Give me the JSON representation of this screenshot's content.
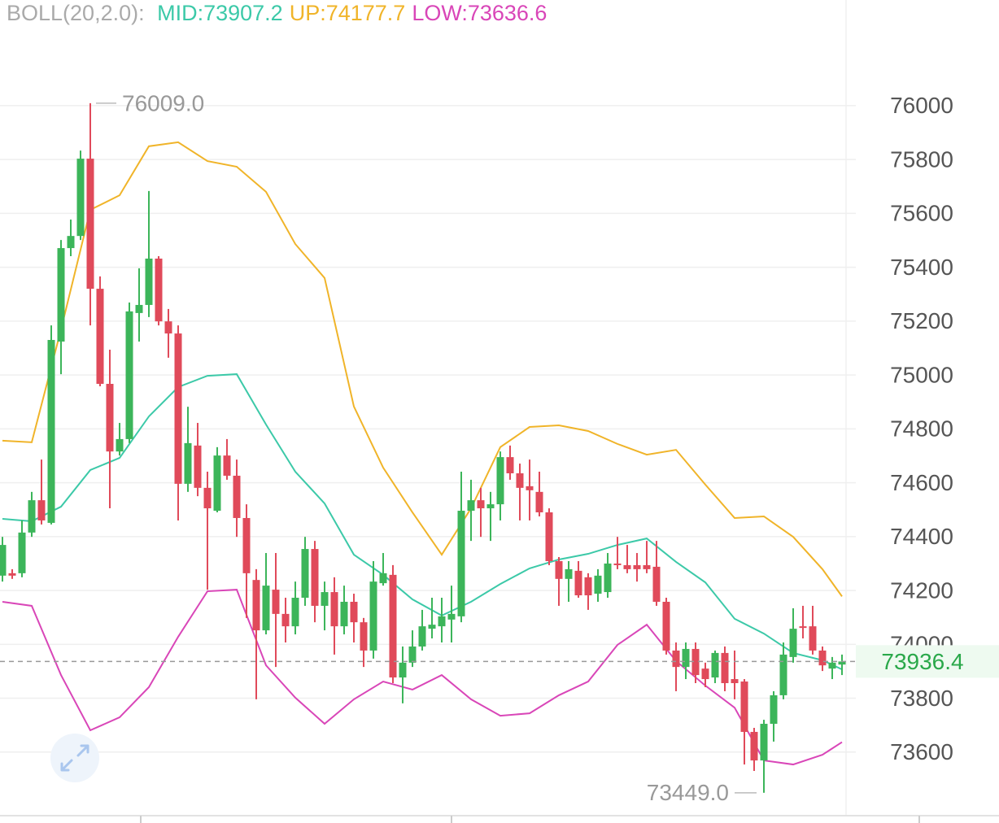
{
  "chart_data": {
    "type": "candlestick",
    "legend_prefix": "BOLL(20,2.0):",
    "up_color": "#3cb55a",
    "down_color": "#e04a5a",
    "ylim": [
      73373,
      76392
    ],
    "yticks": [
      73600,
      73800,
      74000,
      74200,
      74400,
      74600,
      74800,
      75000,
      75200,
      75400,
      75600,
      75800,
      76000
    ],
    "grid": true,
    "open": [
      74255,
      74264,
      74264,
      74415,
      74535,
      74451,
      75124,
      75471,
      75516,
      75803,
      75320,
      74967,
      74716,
      74762,
      75230,
      75260,
      75432,
      75199,
      75154,
      74596,
      74738,
      74581,
      74496,
      74701,
      74626,
      74469,
      74239,
      74052,
      74203,
      74113,
      74067,
      74173,
      74354,
      74143,
      74194,
      74067,
      74158,
      74082,
      73977,
      74227,
      74258,
      73877,
      73932,
      73992,
      74058,
      74067,
      74092,
      74104,
      74496,
      74535,
      74505,
      74520,
      74695,
      74635,
      74587,
      74566,
      74490,
      74309,
      74243,
      74273,
      74249,
      74188,
      74194,
      74300,
      74294,
      74294,
      74294,
      74288,
      74158,
      73977,
      73916,
      73983,
      73910,
      73877,
      73968,
      73871,
      73862,
      73675,
      73569,
      73705,
      73811,
      73953,
      74067,
      74067,
      73977,
      73910,
      73925
    ],
    "high": [
      74399,
      74279,
      74460,
      74566,
      74686,
      75184,
      75501,
      75577,
      75833,
      76009,
      75366,
      75094,
      74822,
      75269,
      75396,
      75683,
      75441,
      75245,
      75184,
      74882,
      74822,
      74641,
      74732,
      74762,
      74686,
      74520,
      74279,
      74339,
      74339,
      74173,
      74233,
      74399,
      74384,
      74233,
      74249,
      74218,
      74188,
      74098,
      74309,
      74339,
      74294,
      73992,
      74052,
      74128,
      74173,
      74173,
      74218,
      74641,
      74611,
      74581,
      74566,
      74716,
      74738,
      74671,
      74686,
      74641,
      74505,
      74324,
      74309,
      74309,
      74264,
      74279,
      74339,
      74399,
      74369,
      74339,
      74384,
      74384,
      74173,
      74007,
      74007,
      74007,
      73932,
      73977,
      73992,
      73977,
      73871,
      73690,
      73720,
      73826,
      74007,
      74134,
      74143,
      74143,
      73992,
      73953,
      73962
    ],
    "low": [
      74233,
      74243,
      74249,
      74399,
      74445,
      74445,
      75003,
      75441,
      75501,
      75184,
      74958,
      74505,
      74701,
      74747,
      75124,
      75215,
      75184,
      75064,
      74460,
      74566,
      74550,
      74203,
      74490,
      74611,
      74399,
      74098,
      73796,
      74037,
      73916,
      74007,
      74037,
      74143,
      74082,
      74052,
      73962,
      74037,
      74007,
      73916,
      73947,
      74218,
      73856,
      73781,
      73916,
      73977,
      74022,
      74007,
      74007,
      74082,
      74384,
      74399,
      74384,
      74460,
      74611,
      74460,
      74460,
      74475,
      74294,
      74143,
      74158,
      74173,
      74128,
      74158,
      74173,
      74279,
      74264,
      74233,
      74264,
      74143,
      73962,
      73826,
      73871,
      73856,
      73841,
      73856,
      73826,
      73796,
      73554,
      73530,
      73449,
      73639,
      73796,
      73932,
      74022,
      73962,
      73901,
      73871,
      73886
    ],
    "close": [
      74369,
      74255,
      74415,
      74535,
      74460,
      75130,
      75471,
      75516,
      75803,
      75320,
      74967,
      74716,
      74762,
      75236,
      75260,
      75432,
      75199,
      75154,
      74596,
      74747,
      74581,
      74505,
      74701,
      74626,
      74469,
      74264,
      74052,
      74218,
      74113,
      74067,
      74173,
      74354,
      74143,
      74194,
      74067,
      74158,
      74082,
      73977,
      74233,
      74264,
      73877,
      73932,
      73992,
      74067,
      74073,
      74104,
      74113,
      74496,
      74535,
      74505,
      74520,
      74695,
      74635,
      74581,
      74572,
      74490,
      74309,
      74243,
      74279,
      74182,
      74182,
      74255,
      74300,
      74294,
      74279,
      74279,
      74279,
      74158,
      73977,
      73916,
      73983,
      73886,
      73871,
      73968,
      73856,
      73856,
      73675,
      73569,
      73705,
      73811,
      73962,
      74058,
      74061,
      73977,
      73922,
      73932,
      73936.4
    ],
    "series": [
      {
        "name": "MID:73907.2",
        "color": "#3cc9a8",
        "x": [
          0,
          3,
          6,
          9,
          12,
          15,
          18,
          21,
          24,
          27,
          30,
          33,
          36,
          39,
          42,
          45,
          48,
          51,
          54,
          57,
          60,
          63,
          66,
          69,
          72,
          75,
          78,
          81,
          84,
          86
        ],
        "values": [
          74466,
          74457,
          74511,
          74647,
          74692,
          74846,
          74955,
          74997,
          75003,
          74816,
          74641,
          74523,
          74333,
          74258,
          74167,
          74107,
          74158,
          74224,
          74282,
          74315,
          74336,
          74369,
          74393,
          74306,
          74230,
          74095,
          74040,
          73968,
          73941,
          73907
        ]
      },
      {
        "name": "UP:74177.7",
        "color": "#f0b429",
        "x": [
          0,
          3,
          6,
          9,
          12,
          15,
          18,
          21,
          24,
          27,
          30,
          33,
          36,
          39,
          42,
          45,
          48,
          51,
          54,
          57,
          60,
          63,
          66,
          69,
          72,
          75,
          78,
          81,
          84,
          86
        ],
        "values": [
          74756,
          74750,
          75169,
          75613,
          75667,
          75849,
          75864,
          75794,
          75773,
          75680,
          75486,
          75360,
          74883,
          74656,
          74490,
          74333,
          74505,
          74732,
          74807,
          74813,
          74792,
          74744,
          74704,
          74722,
          74593,
          74469,
          74475,
          74399,
          74279,
          74178
        ]
      },
      {
        "name": "LOW:73636.6",
        "color": "#d946b8",
        "x": [
          0,
          3,
          6,
          9,
          12,
          15,
          18,
          21,
          24,
          27,
          30,
          33,
          36,
          39,
          42,
          45,
          48,
          51,
          54,
          57,
          60,
          63,
          66,
          69,
          72,
          75,
          78,
          81,
          84,
          86
        ],
        "values": [
          74158,
          74143,
          73886,
          73681,
          73729,
          73841,
          74028,
          74197,
          74203,
          73922,
          73802,
          73705,
          73796,
          73862,
          73832,
          73886,
          73796,
          73735,
          73744,
          73811,
          73862,
          73998,
          74073,
          73938,
          73847,
          73765,
          73569,
          73554,
          73590,
          73637
        ]
      }
    ],
    "last_price": 73936.4,
    "last_price_color": "#2aa84a",
    "max_label": {
      "value": 76009,
      "label": "76009.0"
    },
    "min_label": {
      "value": 73449,
      "label": "73449.0"
    }
  }
}
